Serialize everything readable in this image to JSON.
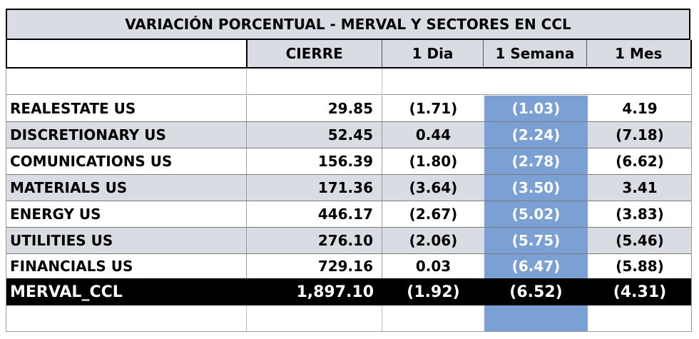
{
  "title": "VARIACIÓN PORCENTUAL  - MERVAL Y SECTORES EN CCL",
  "headers": [
    "",
    "CIERRE",
    "1 Dia",
    "1 Semana",
    "1 Mes"
  ],
  "rows": [
    {
      "name": "REALESTATE US",
      "cierre": "29.85",
      "dia": "(1.71)",
      "semana": "(1.03)",
      "mes": "4.19"
    },
    {
      "name": "DISCRETIONARY US",
      "cierre": "52.45",
      "dia": "0.44",
      "semana": "(2.24)",
      "mes": "(7.18)"
    },
    {
      "name": "COMUNICATIONS US",
      "cierre": "156.39",
      "dia": "(1.80)",
      "semana": "(2.78)",
      "mes": "(6.62)"
    },
    {
      "name": "MATERIALS US",
      "cierre": "171.36",
      "dia": "(3.64)",
      "semana": "(3.50)",
      "mes": "3.41"
    },
    {
      "name": "ENERGY US",
      "cierre": "446.17",
      "dia": "(2.67)",
      "semana": "(5.02)",
      "mes": "(3.83)"
    },
    {
      "name": "UTILITIES US",
      "cierre": "276.10",
      "dia": "(2.06)",
      "semana": "(5.75)",
      "mes": "(5.46)"
    },
    {
      "name": "FINANCIALS US",
      "cierre": "729.16",
      "dia": "0.03",
      "semana": "(6.47)",
      "mes": "(5.88)"
    }
  ],
  "total": {
    "name": "MERVAL_CCL",
    "cierre": "1,897.10",
    "dia": "(1.92)",
    "semana": "(6.52)",
    "mes": "(4.31)"
  },
  "colors": {
    "header_bg": "#d9dce3",
    "week_highlight": "#7aa0d4",
    "total_bg": "#000000"
  }
}
